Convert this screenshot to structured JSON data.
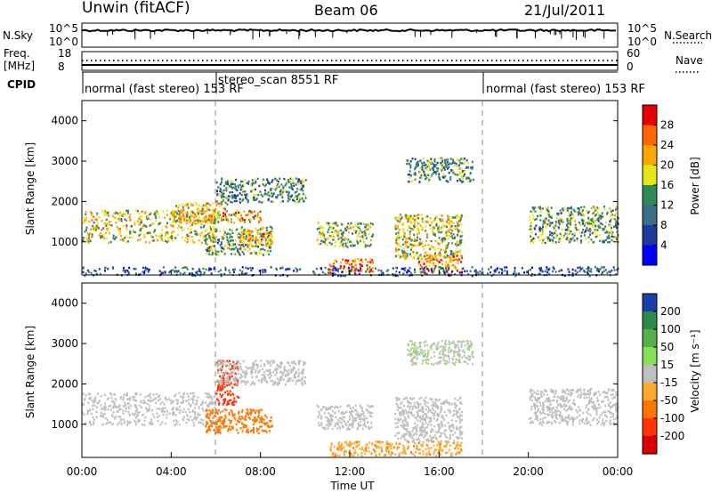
{
  "header": {
    "station": "Unwin (fitACF)",
    "beam": "Beam 06",
    "date": "21/Jul/2011"
  },
  "noise_panel": {
    "left_label": "N.Sky",
    "left_ticks": [
      "10^5",
      "10^0"
    ],
    "right_ticks": [
      "10^5",
      "10^0"
    ],
    "right_label": "N.Search"
  },
  "freq_panel": {
    "left_label_line1": "Freq.",
    "left_label_line2": "[MHz]",
    "left_ticks": [
      "18",
      "8"
    ],
    "right_ticks": [
      "60",
      "0"
    ],
    "right_label": "Nave"
  },
  "cpid": {
    "label": "CPID",
    "segments": [
      {
        "text": "normal (fast stereo) 153 RF",
        "start_hour": 0,
        "end_hour": 6
      },
      {
        "text": "stereo_scan 8551 RF",
        "start_hour": 6,
        "end_hour": 18
      },
      {
        "text": "normal (fast stereo) 153 RF",
        "start_hour": 18,
        "end_hour": 24
      }
    ]
  },
  "power_panel": {
    "ylabel": "Slant Range [km]",
    "yticks": [
      "4000",
      "3000",
      "2000",
      "1000"
    ],
    "colorbar_label": "Power [dB]",
    "colorbar_ticks": [
      "28",
      "24",
      "20",
      "16",
      "12",
      "8",
      "4"
    ],
    "colorbar_colors": [
      "#e60000",
      "#ff6600",
      "#ffa500",
      "#e6e61a",
      "#2e8b57",
      "#3c6e8a",
      "#1e3a9c",
      "#0000ff"
    ]
  },
  "velocity_panel": {
    "ylabel": "Slant Range [km]",
    "yticks": [
      "4000",
      "3000",
      "2000",
      "1000"
    ],
    "colorbar_label": "Velocity [m s⁻¹]",
    "colorbar_ticks": [
      "200",
      "100",
      "50",
      "15",
      "-15",
      "-50",
      "-100",
      "-200"
    ],
    "colorbar_colors": [
      "#1a3fa8",
      "#2a8a4a",
      "#55b04a",
      "#88e05a",
      "#bfbfbf",
      "#ffaa33",
      "#ff7700",
      "#ff3300",
      "#dd0000"
    ]
  },
  "xaxis": {
    "ticks": [
      "00:00",
      "04:00",
      "08:00",
      "12:00",
      "16:00",
      "20:00",
      "00:00"
    ],
    "label": "Time UT"
  },
  "chart_data": [
    {
      "type": "heatmap",
      "title": "Power [dB]",
      "xlabel": "Time UT",
      "ylabel": "Slant Range [km]",
      "xlim_hours": [
        0,
        24
      ],
      "ylim": [
        180,
        4500
      ],
      "clim": [
        0,
        32
      ],
      "scatter_regions": [
        {
          "t": [
            0.0,
            6.0
          ],
          "r": [
            1000,
            1800
          ],
          "value": 18
        },
        {
          "t": [
            4.0,
            6.5
          ],
          "r": [
            1500,
            2000
          ],
          "value": 20
        },
        {
          "t": [
            5.5,
            8.0
          ],
          "r": [
            1500,
            1800
          ],
          "value": 22
        },
        {
          "t": [
            5.5,
            8.5
          ],
          "r": [
            700,
            1400
          ],
          "value": 14
        },
        {
          "t": [
            7.0,
            8.5
          ],
          "r": [
            900,
            1300
          ],
          "value": 22
        },
        {
          "t": [
            6.0,
            10.0
          ],
          "r": [
            2000,
            2600
          ],
          "value": 12
        },
        {
          "t": [
            10.5,
            13.0
          ],
          "r": [
            900,
            1500
          ],
          "value": 16
        },
        {
          "t": [
            11.0,
            13.0
          ],
          "r": [
            250,
            600
          ],
          "value": 26
        },
        {
          "t": [
            14.0,
            17.0
          ],
          "r": [
            600,
            1700
          ],
          "value": 18
        },
        {
          "t": [
            15.0,
            17.0
          ],
          "r": [
            250,
            700
          ],
          "value": 24
        },
        {
          "t": [
            14.5,
            17.5
          ],
          "r": [
            2500,
            3100
          ],
          "value": 12
        },
        {
          "t": [
            20.0,
            24.0
          ],
          "r": [
            1000,
            1900
          ],
          "value": 14
        },
        {
          "t": [
            0.0,
            24.0
          ],
          "r": [
            180,
            400
          ],
          "value": 8
        }
      ]
    },
    {
      "type": "heatmap",
      "title": "Velocity [m s⁻¹]",
      "xlabel": "Time UT",
      "ylabel": "Slant Range [km]",
      "xlim_hours": [
        0,
        24
      ],
      "ylim": [
        180,
        4500
      ],
      "clim": [
        -250,
        250
      ],
      "scatter_regions": [
        {
          "t": [
            0.0,
            6.0
          ],
          "r": [
            1000,
            1800
          ],
          "value": 0
        },
        {
          "t": [
            5.5,
            8.5
          ],
          "r": [
            800,
            1400
          ],
          "value": -80
        },
        {
          "t": [
            6.0,
            7.0
          ],
          "r": [
            1500,
            2600
          ],
          "value": -120
        },
        {
          "t": [
            6.0,
            10.0
          ],
          "r": [
            2000,
            2600
          ],
          "value": 0
        },
        {
          "t": [
            10.5,
            13.0
          ],
          "r": [
            900,
            1500
          ],
          "value": 0
        },
        {
          "t": [
            11.0,
            17.0
          ],
          "r": [
            250,
            600
          ],
          "value": -40
        },
        {
          "t": [
            14.0,
            17.0
          ],
          "r": [
            600,
            1700
          ],
          "value": 0
        },
        {
          "t": [
            14.5,
            17.5
          ],
          "r": [
            2500,
            3100
          ],
          "value": 10
        },
        {
          "t": [
            20.0,
            24.0
          ],
          "r": [
            1000,
            1900
          ],
          "value": 0
        }
      ]
    }
  ]
}
